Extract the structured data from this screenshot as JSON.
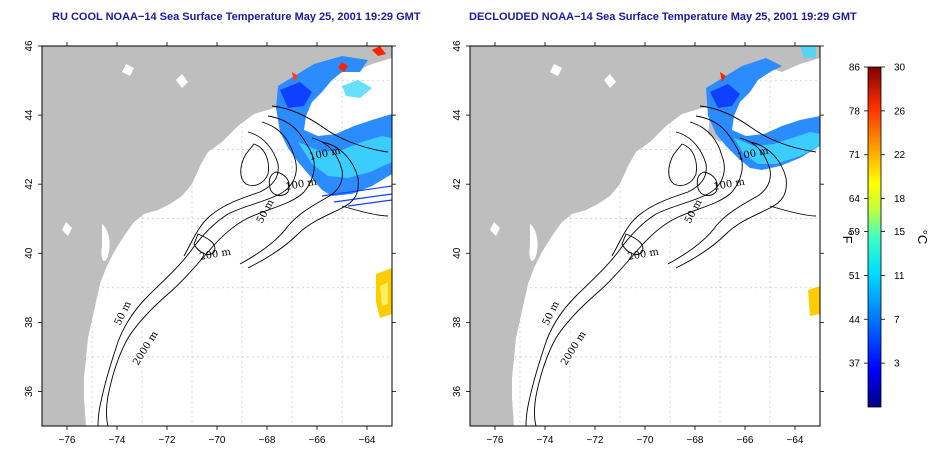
{
  "panels": [
    {
      "id": "left",
      "title": "RU COOL NOAA−14 Sea Surface Temperature May 25, 2001 19:29 GMT"
    },
    {
      "id": "right",
      "title": "DECLOUDED NOAA−14 Sea Surface Temperature May 25, 2001 19:29 GMT"
    }
  ],
  "axes": {
    "lon_ticks": [
      "−76",
      "−74",
      "−72",
      "−70",
      "−68",
      "−66",
      "−64"
    ],
    "lon_values": [
      -76,
      -74,
      -72,
      -70,
      -68,
      -66,
      -64
    ],
    "lat_ticks": [
      "36",
      "38",
      "40",
      "42",
      "44",
      "46"
    ],
    "lat_values": [
      36,
      38,
      40,
      42,
      44,
      46
    ],
    "lon_range": [
      -77,
      -63
    ],
    "lat_range": [
      35,
      46
    ]
  },
  "contour_labels": [
    "100 m",
    "100 m",
    "50 m",
    "200 m",
    "50 m",
    "2000 m"
  ],
  "colorbar": {
    "fahrenheit_ticks": [
      "86",
      "78",
      "71",
      "64",
      "59",
      "51",
      "44",
      "37"
    ],
    "celsius_ticks": [
      "30",
      "26",
      "22",
      "18",
      "15",
      "11",
      "7",
      "3"
    ],
    "celsius_values": [
      30,
      26,
      22,
      18,
      15,
      11,
      7,
      3
    ],
    "range_c": [
      -1,
      30
    ],
    "unit_f": "°F",
    "unit_c": "°C"
  },
  "colors": {
    "land": "#bebebe",
    "title": "#1a1aa6",
    "colorbar_stops": [
      "#000080",
      "#0000ff",
      "#0080ff",
      "#00e0ff",
      "#40ffc0",
      "#c0ff40",
      "#ffff00",
      "#ffa000",
      "#ff3000",
      "#800000"
    ]
  }
}
